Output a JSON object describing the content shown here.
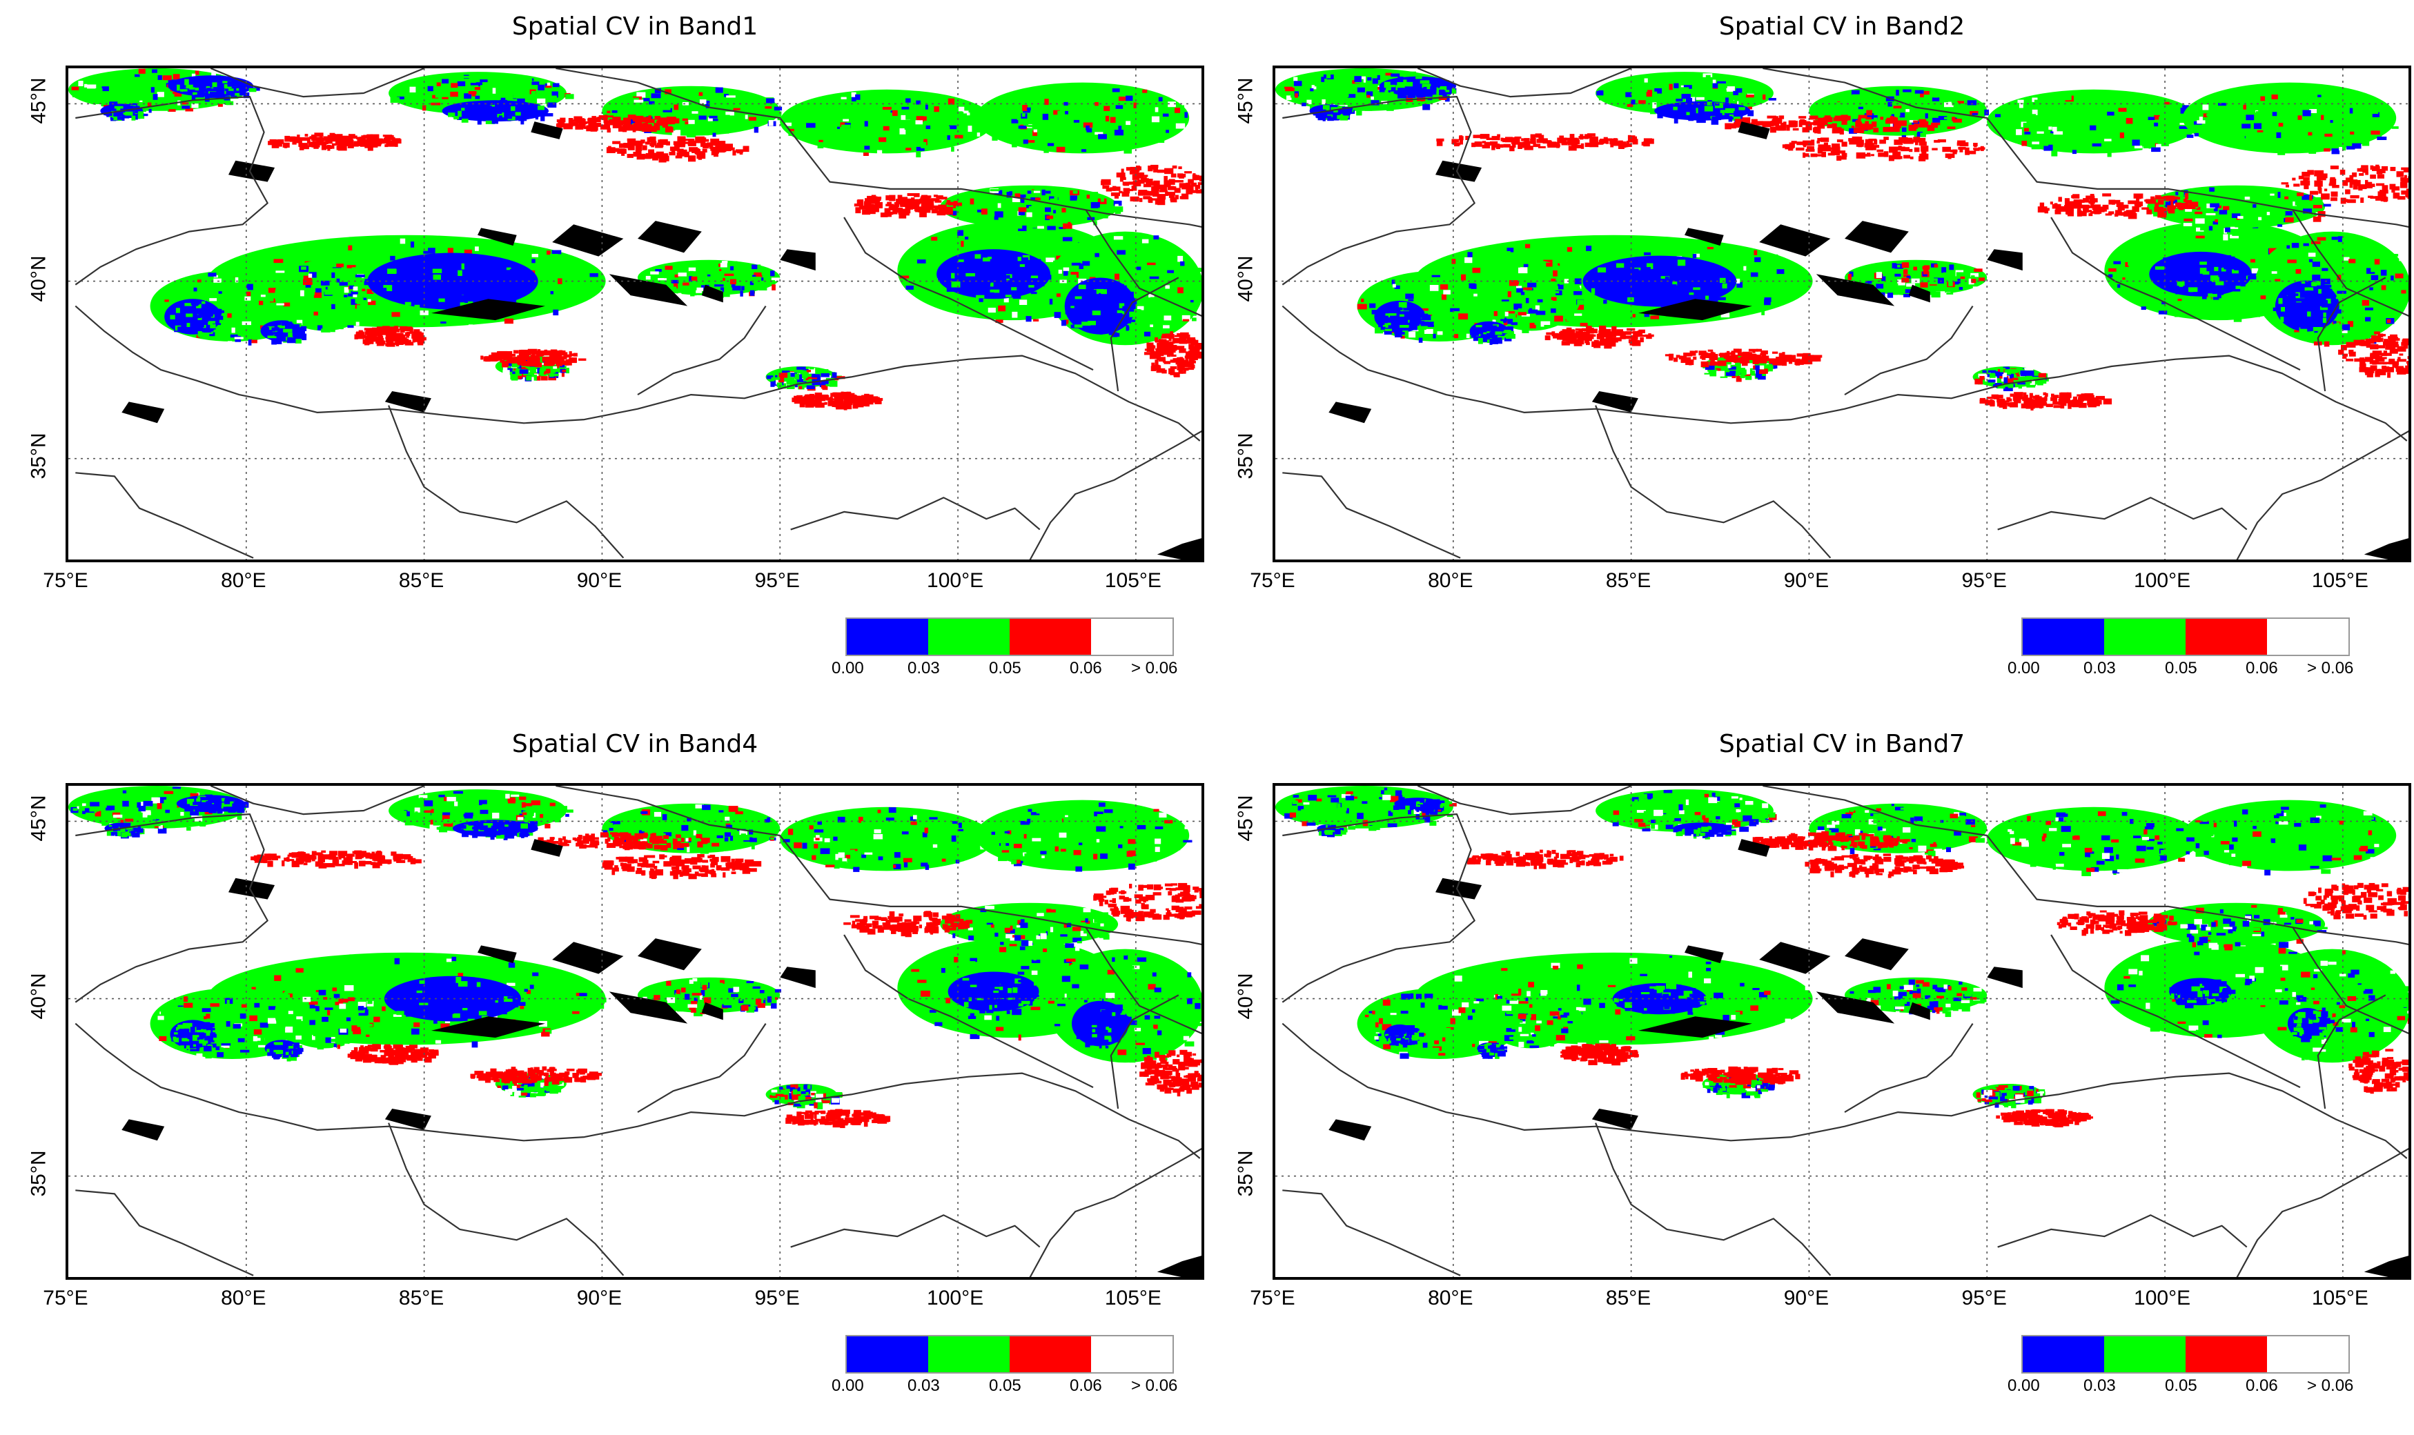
{
  "panels": [
    {
      "title": "Spatial CV in Band1"
    },
    {
      "title": "Spatial CV in Band2"
    },
    {
      "title": "Spatial CV in Band4"
    },
    {
      "title": "Spatial CV in Band7"
    }
  ],
  "axes": {
    "lon_labels": [
      "75°E",
      "80°E",
      "85°E",
      "90°E",
      "95°E",
      "100°E",
      "105°E"
    ],
    "lat_labels": [
      "45°N",
      "40°N",
      "35°N"
    ]
  },
  "legend": {
    "ticks": [
      "0.00",
      "0.03",
      "0.05",
      "0.06",
      "> 0.06"
    ],
    "colors": [
      "#0000ff",
      "#00ff00",
      "#ff0000",
      "#ffffff"
    ]
  },
  "colors": {
    "low_cv": "#0000ff",
    "mid_cv": "#00ff00",
    "high_cv": "#ff0000",
    "very_high_cv": "#ffffff",
    "masked": "#000000",
    "border": "#333333",
    "grid": "#555555"
  }
}
